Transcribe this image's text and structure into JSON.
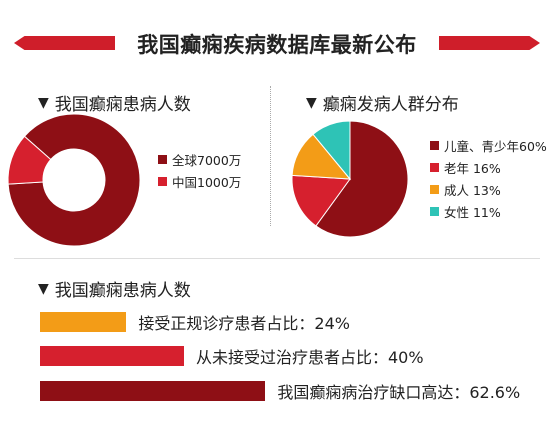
{
  "title": "我国癫痫疾病数据库最新公布",
  "colors": {
    "dark_red": "#8e0f15",
    "red": "#d6202e",
    "orange": "#f39c17",
    "teal": "#2ec3b6"
  },
  "sections": {
    "patients_header": "我国癫痫患病人数",
    "distribution_header": "癫痫发病人群分布",
    "treatment_header": "我国癫痫患病人数",
    "triangle": "▼"
  },
  "chart_data": [
    {
      "type": "pie",
      "variant": "donut",
      "labels": [
        "全球7000万",
        "中国1000万"
      ],
      "values": [
        7000,
        1000
      ],
      "colors": [
        "#8e0f15",
        "#d6202e"
      ],
      "legend_position": "right"
    },
    {
      "type": "pie",
      "labels": [
        "儿童、青少年60%",
        "老年 16%",
        "成人 13%",
        "女性 11%"
      ],
      "values": [
        60,
        16,
        13,
        11
      ],
      "colors": [
        "#8e0f15",
        "#d6202e",
        "#f39c17",
        "#2ec3b6"
      ],
      "legend_position": "right"
    },
    {
      "type": "bar",
      "orientation": "horizontal",
      "categories": [
        "接受正规诊疗患者占比：24%",
        "从未接受过治疗患者占比：40%",
        "我国癫痫病治疗缺口高达：62.6%"
      ],
      "values": [
        24,
        40,
        62.6
      ],
      "colors": [
        "#f39c17",
        "#d6202e",
        "#8e0f15"
      ]
    }
  ]
}
